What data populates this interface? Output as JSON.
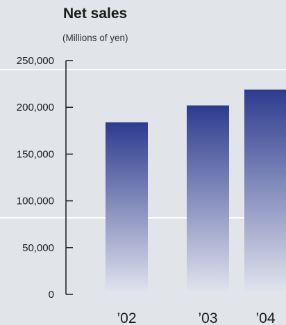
{
  "chart_data": {
    "type": "bar",
    "title": "Net sales",
    "subtitle": "(Millions of yen)",
    "categories": [
      "’02",
      "’03",
      "’04"
    ],
    "values": [
      184000,
      202000,
      219000
    ],
    "yticks": [
      "250,000",
      "200,000",
      "150,000",
      "100,000",
      "50,000",
      "0"
    ],
    "ytick_values": [
      250000,
      200000,
      150000,
      100000,
      50000,
      0
    ],
    "ylim": [
      0,
      250000
    ],
    "grid": false,
    "legend": "none"
  },
  "colors": {
    "background": "#e1e4e8",
    "bar_top": "#2d3b8f",
    "bar_bottom": "#e3e5ee",
    "axis": "#1a1a1a"
  }
}
